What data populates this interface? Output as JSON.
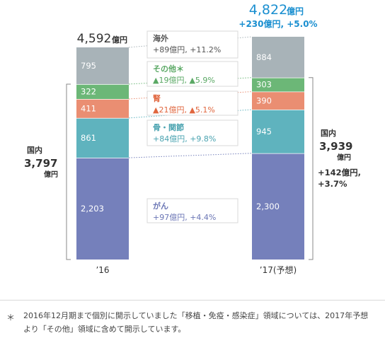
{
  "chart_data": {
    "type": "bar",
    "stacked": true,
    "categories": [
      "’16",
      "’17(予想)"
    ],
    "series": [
      {
        "name": "がん",
        "values": [
          2203,
          2300
        ],
        "labels": [
          "2,203",
          "2,300"
        ],
        "color": "#7580bb"
      },
      {
        "name": "骨・関節",
        "values": [
          861,
          945
        ],
        "labels": [
          "861",
          "945"
        ],
        "color": "#5fb3be"
      },
      {
        "name": "腎",
        "values": [
          411,
          390
        ],
        "labels": [
          "411",
          "390"
        ],
        "color": "#ea8e72"
      },
      {
        "name": "その他",
        "values": [
          322,
          303
        ],
        "labels": [
          "322",
          "303"
        ],
        "color": "#6cb777"
      },
      {
        "name": "海外",
        "values": [
          795,
          884
        ],
        "labels": [
          "795",
          "884"
        ],
        "color": "#a8b3b8"
      }
    ],
    "totals": [
      {
        "value": "4,592",
        "unit": "億円"
      },
      {
        "value": "4,822",
        "unit": "億円",
        "change": "+230億円, +5.0%"
      }
    ],
    "changes": [
      {
        "series": "海外",
        "title": "海外",
        "text": "+89億円, +11.2%",
        "color": "#555555"
      },
      {
        "series": "その他",
        "title": "その他＊",
        "text": "▲19億円, ▲5.9%",
        "color": "#5aa864"
      },
      {
        "series": "腎",
        "title": "腎",
        "text": "▲21億円, ▲5.1%",
        "color": "#e0663e"
      },
      {
        "series": "骨・関節",
        "title": "骨・関節",
        "text": "+84億円, +9.8%",
        "color": "#4aa3b0"
      },
      {
        "series": "がん",
        "title": "がん",
        "text": "+97億円, +4.4%",
        "color": "#6b76b5"
      }
    ],
    "domestic": [
      {
        "title": "国内",
        "value": "3,797",
        "unit": "億円"
      },
      {
        "title": "国内",
        "value": "3,939",
        "unit": "億円",
        "change1": "+142億円,",
        "change2": "+3.7%"
      }
    ],
    "colors": {
      "total_highlight": "#1a8fd0",
      "text": "#333333",
      "bracket": "#888888"
    }
  },
  "footnote": {
    "mark": "＊",
    "text": "2016年12月期まで個別に開示していました「移植・免疫・感染症」領域については、2017年予想より「その他」領域に含めて開示しています。"
  }
}
